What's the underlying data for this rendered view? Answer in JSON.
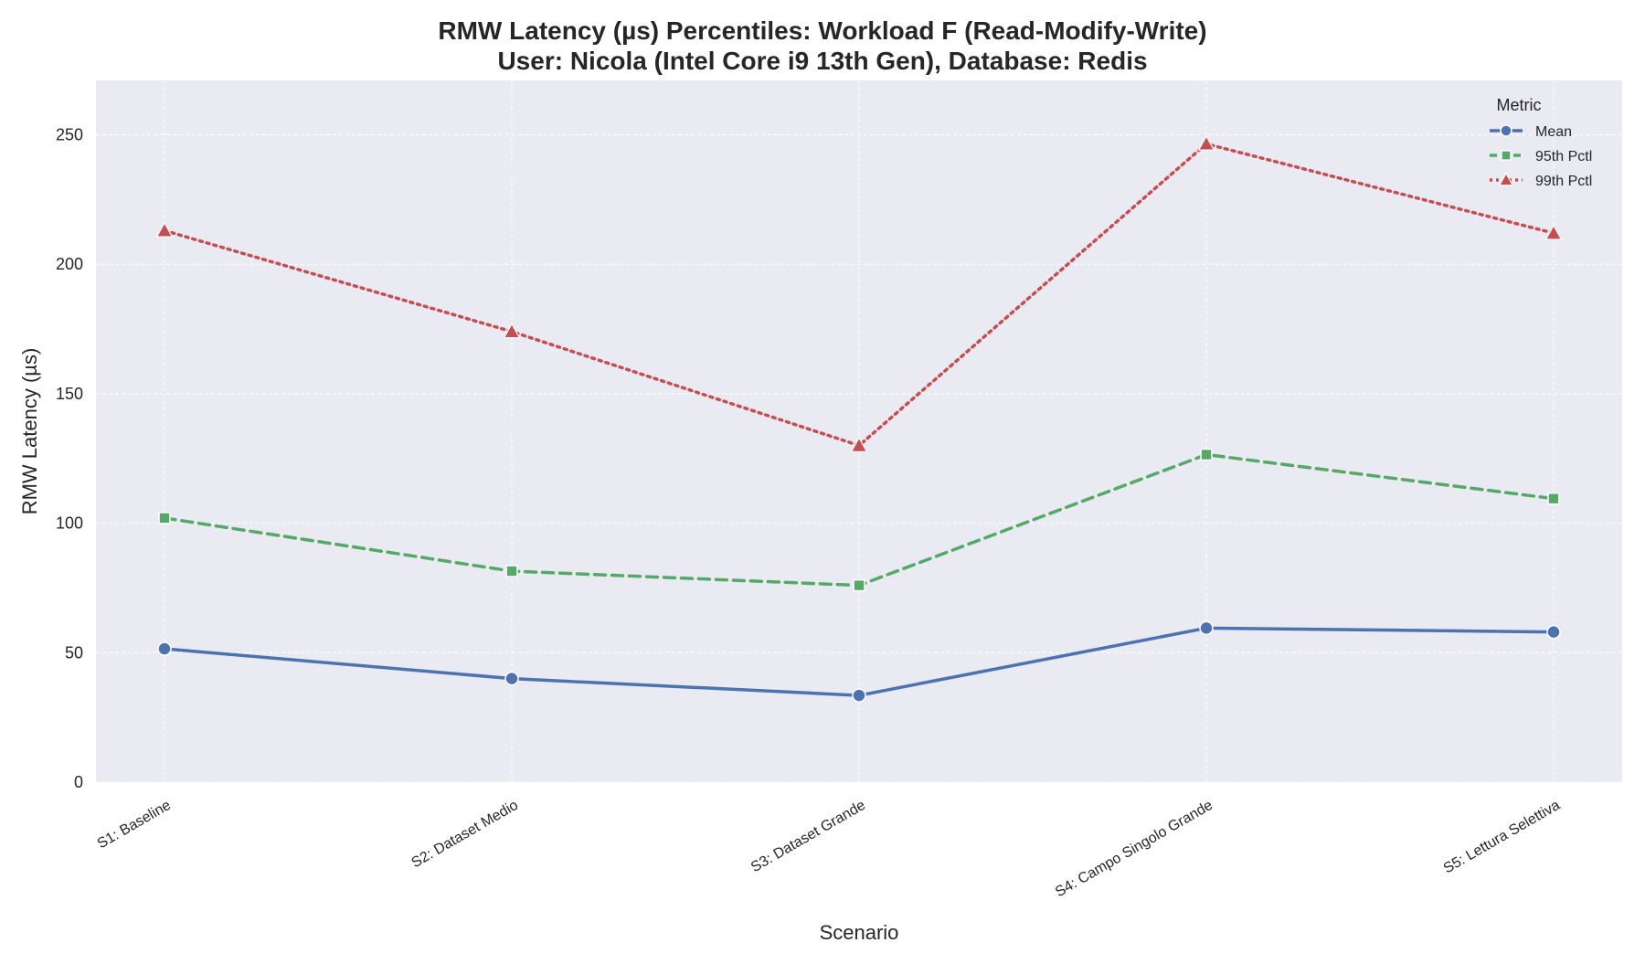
{
  "chart_data": {
    "type": "line",
    "title_line1": "RMW Latency (µs) Percentiles: Workload F (Read-Modify-Write)",
    "title_line2": "User: Nicola (Intel Core i9 13th Gen), Database: Redis",
    "xlabel": "Scenario",
    "ylabel": "RMW Latency (µs)",
    "ylim": [
      0,
      271
    ],
    "yticks": [
      0,
      50,
      100,
      150,
      200,
      250
    ],
    "grid": true,
    "legend": {
      "title": "Metric",
      "placement": "top-right"
    },
    "categories": [
      "S1: Baseline",
      "S2: Dataset Medio",
      "S3: Dataset Grande",
      "S4: Campo Singolo Grande",
      "S5: Lettura Selettiva"
    ],
    "series": [
      {
        "name": "Mean",
        "values": [
          51.5,
          40.0,
          33.5,
          59.5,
          58.0
        ],
        "color": "#4c72b0",
        "marker": "circle",
        "dash": "solid"
      },
      {
        "name": "95th Pctl",
        "values": [
          102.0,
          81.5,
          76.0,
          126.5,
          109.5
        ],
        "color": "#55a868",
        "marker": "square",
        "dash": "dashed"
      },
      {
        "name": "99th Pctl",
        "values": [
          213.0,
          174.0,
          130.0,
          246.5,
          212.0
        ],
        "color": "#c44e52",
        "marker": "triangle",
        "dash": "dotted"
      }
    ]
  }
}
